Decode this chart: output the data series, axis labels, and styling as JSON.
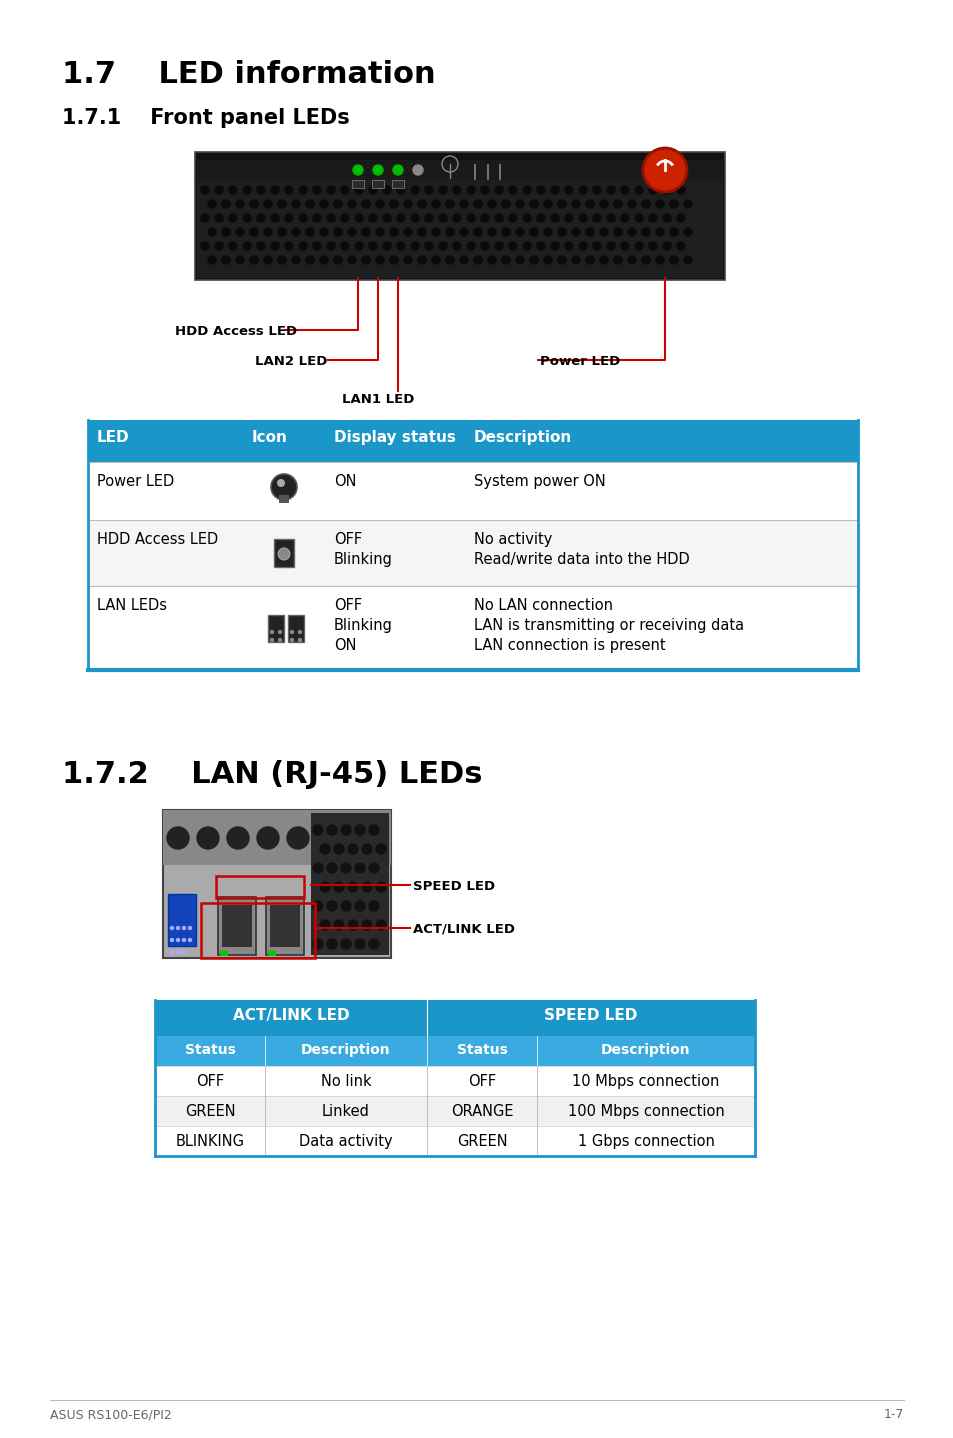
{
  "title_17": "1.7    LED information",
  "title_171": "1.7.1    Front panel LEDs",
  "title_172": "1.7.2    LAN (RJ-45) LEDs",
  "header_color": "#1a96c8",
  "header_text_color": "#ffffff",
  "sub_header_color": "#3aabe0",
  "table1_headers": [
    "LED",
    "Icon",
    "Display status",
    "Description"
  ],
  "table2_header1": "ACT/LINK LED",
  "table2_header2": "SPEED LED",
  "table2_col_headers": [
    "Status",
    "Description",
    "Status",
    "Description"
  ],
  "table2_rows": [
    [
      "OFF",
      "No link",
      "OFF",
      "10 Mbps connection"
    ],
    [
      "GREEN",
      "Linked",
      "ORANGE",
      "100 Mbps connection"
    ],
    [
      "BLINKING",
      "Data activity",
      "GREEN",
      "1 Gbps connection"
    ]
  ],
  "footer_left": "ASUS RS100-E6/PI2",
  "footer_right": "1-7",
  "label_hdd": "HDD Access LED",
  "label_lan2": "LAN2 LED",
  "label_lan1": "LAN1 LED",
  "label_power": "Power LED",
  "label_speed": "SPEED LED",
  "label_actlink": "ACT/LINK LED",
  "bg_color": "#ffffff",
  "text_color": "#000000",
  "red_color": "#cc0000",
  "border_color": "#1a96c8",
  "panel_row1_color": "#ffffff",
  "panel_row2_color": "#f5f5f5"
}
